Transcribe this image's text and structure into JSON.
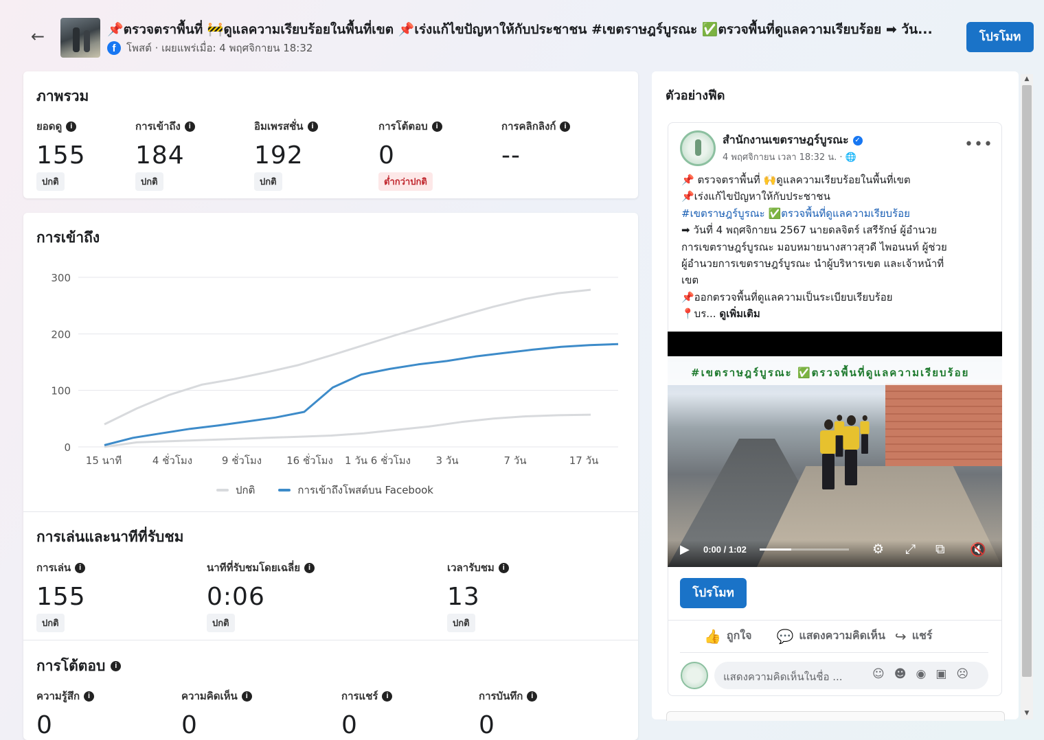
{
  "header": {
    "back_icon": "arrow-left-icon",
    "title": "📌ตรวจตราพื้นที่ 🚧ดูแลความเรียบร้อยในพื้นที่เขต 📌เร่งแก้ไขปัญหาให้กับประชาชน #เขตราษฎร์บูรณะ ✅ตรวจพื้นที่ดูแลความเรียบร้อย ➡ วัน...",
    "subtitle": "โพสต์ · เผยแพร่เมื่อ: 4 พฤศจิกายน 18:32",
    "promote_label": "โปรโมท"
  },
  "overview": {
    "title": "ภาพรวม",
    "metrics": [
      {
        "label": "ยอดดู",
        "value": "155",
        "tag": "ปกติ",
        "tag_type": "normal"
      },
      {
        "label": "การเข้าถึง",
        "value": "184",
        "tag": "ปกติ",
        "tag_type": "normal"
      },
      {
        "label": "อิมเพรสชั่น",
        "value": "192",
        "tag": "ปกติ",
        "tag_type": "normal"
      },
      {
        "label": "การโต้ตอบ",
        "value": "0",
        "tag": "ต่ำกว่าปกติ",
        "tag_type": "low"
      },
      {
        "label": "การคลิกลิงก์",
        "value": "--",
        "tag": "",
        "tag_type": "none"
      }
    ]
  },
  "reach": {
    "title": "การเข้าถึง",
    "legend": [
      {
        "label": "ปกติ",
        "color": "#d8dadd"
      },
      {
        "label": "การเข้าถึงโพสต์บน Facebook",
        "color": "#3d8bc9"
      }
    ]
  },
  "chart_data": {
    "type": "line",
    "title": "การเข้าถึง",
    "xlabel": "",
    "ylabel": "",
    "ylim": [
      0,
      300
    ],
    "yticks": [
      "0",
      "100",
      "200",
      "300"
    ],
    "x_tick_labels": [
      "15 นาที",
      "4 ชั่วโมง",
      "9 ชั่วโมง",
      "16 ชั่วโมง",
      "1 วัน 6 ชั่วโมง",
      "3 วัน",
      "7 วัน",
      "17 วัน"
    ],
    "grid": true,
    "legend_position": "bottom",
    "series": [
      {
        "name": "ปกติ",
        "color": "#d8dadd",
        "style": "band",
        "upper": [
          40,
          68,
          92,
          110,
          120,
          132,
          145,
          162,
          180,
          198,
          215,
          232,
          248,
          262,
          272,
          278
        ],
        "lower": [
          0,
          8,
          10,
          12,
          14,
          16,
          18,
          20,
          24,
          30,
          36,
          44,
          50,
          54,
          56,
          57
        ]
      },
      {
        "name": "การเข้าถึงโพสต์บน Facebook",
        "color": "#3d8bc9",
        "style": "line",
        "values": [
          3,
          16,
          24,
          32,
          38,
          45,
          52,
          62,
          105,
          128,
          138,
          146,
          152,
          160,
          166,
          172,
          177,
          180,
          182
        ]
      }
    ]
  },
  "playback": {
    "title": "การเล่นและนาทีที่รับชม",
    "metrics": [
      {
        "label": "การเล่น",
        "value": "155",
        "tag": "ปกติ"
      },
      {
        "label": "นาทีที่รับชมโดยเฉลี่ย",
        "value": "0:06",
        "tag": "ปกติ"
      },
      {
        "label": "เวลารับชม",
        "value": "13",
        "tag": "ปกติ"
      }
    ]
  },
  "engagement": {
    "title": "การโต้ตอบ",
    "metrics": [
      {
        "label": "ความรู้สึก",
        "value": "0"
      },
      {
        "label": "ความคิดเห็น",
        "value": "0"
      },
      {
        "label": "การแชร์",
        "value": "0"
      },
      {
        "label": "การบันทึก",
        "value": "0"
      }
    ]
  },
  "preview": {
    "title": "ตัวอย่างฟีด",
    "page_name": "สำนักงานเขตราษฎร์บูรณะ",
    "date": "4 พฤศจิกายน เวลา 18:32 น. · 🌐",
    "more_icon": "more-dots-icon",
    "lines": [
      {
        "text": "📌 ตรวจตราพื้นที่ 🙌ดูแลความเรียบร้อยในพื้นที่เขต",
        "cls": ""
      },
      {
        "text": "  📌เร่งแก้ไขปัญหาให้กับประชาชน",
        "cls": ""
      },
      {
        "text": "#เขตราษฎร์บูรณะ ✅ตรวจพื้นที่ดูแลความเรียบร้อย",
        "cls": "hashtag"
      },
      {
        "text": "➡ วันที่ 4 พฤศจิกายน 2567 นายดลจิตร์ เสรีรักษ์ ผู้อำนวย",
        "cls": ""
      },
      {
        "text": "การเขตราษฎร์บูรณะ มอบหมายนางสาวสุวดี ไพอนนท์ ผู้ช่วย",
        "cls": ""
      },
      {
        "text": "ผู้อำนวยการเขตราษฎร์บูรณะ นำผู้บริหารเขต และเจ้าหน้าที่",
        "cls": ""
      },
      {
        "text": "เขต",
        "cls": ""
      },
      {
        "text": "  📌ออกตรวจพื้นที่ดูแลความเป็นระเบียบเรียบร้อย",
        "cls": ""
      }
    ],
    "last_line_prefix": "📍บร...",
    "see_more": "ดูเพิ่มเติม",
    "video_banner": "#เขตราษฎร์บูรณะ ✅ตรวจพื้นที่ดูแลความเรียบร้อย",
    "video_time": "0:00 / 1:02",
    "video_progress": 0.35,
    "promote_label": "โปรโมท",
    "like_label": "ถูกใจ",
    "comment_label": "แสดงความคิดเห็น",
    "share_label": "แชร์",
    "comment_placeholder": "แสดงความคิดเห็นในชื่อ ..."
  }
}
